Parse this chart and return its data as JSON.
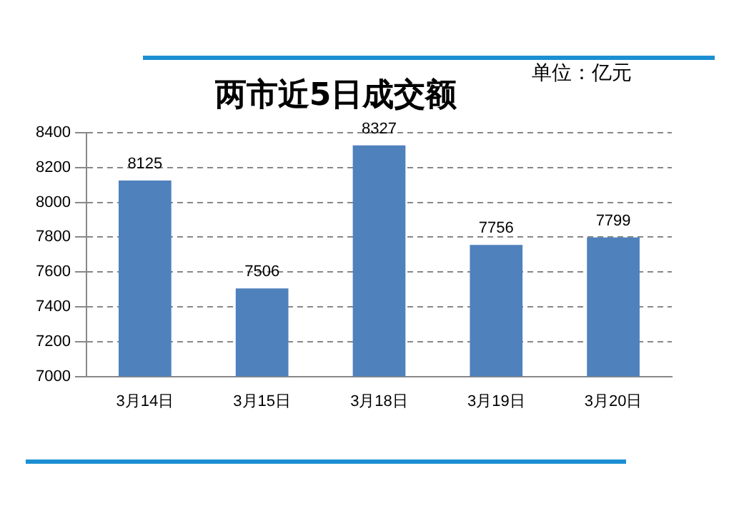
{
  "chart_data": {
    "type": "bar",
    "title": "两市近5日成交额",
    "annotations": [
      "单位：亿元"
    ],
    "categories": [
      "3月14日",
      "3月15日",
      "3月18日",
      "3月19日",
      "3月20日"
    ],
    "values": [
      8125,
      7506,
      8327,
      7756,
      7799
    ],
    "color": "#4f81bd",
    "ylim": [
      7000,
      8400
    ],
    "yticks": [
      7000,
      7200,
      7400,
      7600,
      7800,
      8000,
      8200,
      8400
    ],
    "grid": "y",
    "data_labels": true,
    "legend": false
  }
}
